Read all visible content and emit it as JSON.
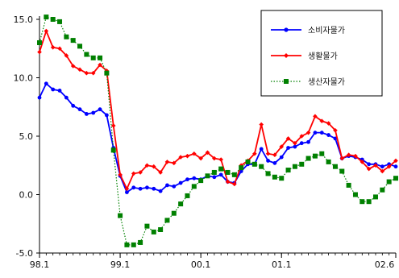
{
  "chart_data": {
    "type": "line",
    "xlabel": "",
    "ylabel": "",
    "ylim": [
      -5.0,
      15.0
    ],
    "y_ticks": [
      "15.0",
      "10.0",
      "5.0",
      "0.0",
      "-5.0"
    ],
    "y_tick_values": [
      15,
      10,
      5,
      0,
      -5
    ],
    "x_start": "98.1",
    "x_ticks": [
      "98.1",
      "99.1",
      "00.1",
      "01.1",
      "02.6"
    ],
    "x_tick_index": [
      0,
      12,
      24,
      36,
      53
    ],
    "grid": false,
    "legend": "top-right",
    "series": [
      {
        "name": "소비자물가",
        "color": "#0000ff",
        "marker": "circle",
        "line": "solid",
        "values": [
          8.3,
          9.5,
          9.0,
          8.9,
          8.3,
          7.6,
          7.3,
          6.9,
          7.0,
          7.3,
          6.8,
          4.0,
          1.6,
          0.2,
          0.6,
          0.5,
          0.6,
          0.5,
          0.3,
          0.8,
          0.7,
          1.0,
          1.3,
          1.4,
          1.3,
          1.6,
          1.5,
          1.7,
          1.1,
          1.0,
          2.0,
          2.6,
          2.6,
          3.9,
          2.9,
          2.7,
          3.2,
          4.0,
          4.1,
          4.4,
          4.5,
          5.3,
          5.3,
          5.1,
          4.8,
          3.1,
          3.3,
          3.2,
          3.0,
          2.6,
          2.6,
          2.4,
          2.6,
          2.4
        ]
      },
      {
        "name": "생활물가",
        "color": "#ff0000",
        "marker": "diamond",
        "line": "solid",
        "values": [
          12.2,
          14.0,
          12.6,
          12.5,
          11.9,
          11.0,
          10.7,
          10.4,
          10.4,
          11.1,
          10.6,
          5.9,
          1.7,
          0.5,
          1.8,
          1.9,
          2.5,
          2.4,
          1.9,
          2.8,
          2.7,
          3.2,
          3.3,
          3.5,
          3.1,
          3.6,
          3.1,
          3.0,
          1.1,
          0.9,
          2.5,
          2.9,
          3.5,
          6.0,
          3.5,
          3.4,
          4.1,
          4.8,
          4.4,
          5.0,
          5.3,
          6.7,
          6.3,
          6.1,
          5.5,
          3.1,
          3.4,
          3.3,
          2.8,
          2.2,
          2.5,
          2.0,
          2.4,
          2.9
        ]
      },
      {
        "name": "생산자물가",
        "color": "#008000",
        "marker": "square",
        "line": "dotted",
        "values": [
          13.0,
          15.2,
          15.0,
          14.8,
          13.5,
          13.2,
          12.7,
          12.0,
          11.7,
          11.7,
          10.4,
          3.8,
          -1.8,
          -4.3,
          -4.3,
          -4.1,
          -2.7,
          -3.2,
          -3.0,
          -2.2,
          -1.6,
          -0.8,
          -0.1,
          0.7,
          1.2,
          1.6,
          1.9,
          2.2,
          1.9,
          1.7,
          2.3,
          2.8,
          2.6,
          2.4,
          1.8,
          1.5,
          1.4,
          2.1,
          2.4,
          2.6,
          3.1,
          3.3,
          3.5,
          2.8,
          2.4,
          2.0,
          0.8,
          0.0,
          -0.6,
          -0.6,
          -0.2,
          0.4,
          1.1,
          1.4
        ]
      }
    ]
  }
}
